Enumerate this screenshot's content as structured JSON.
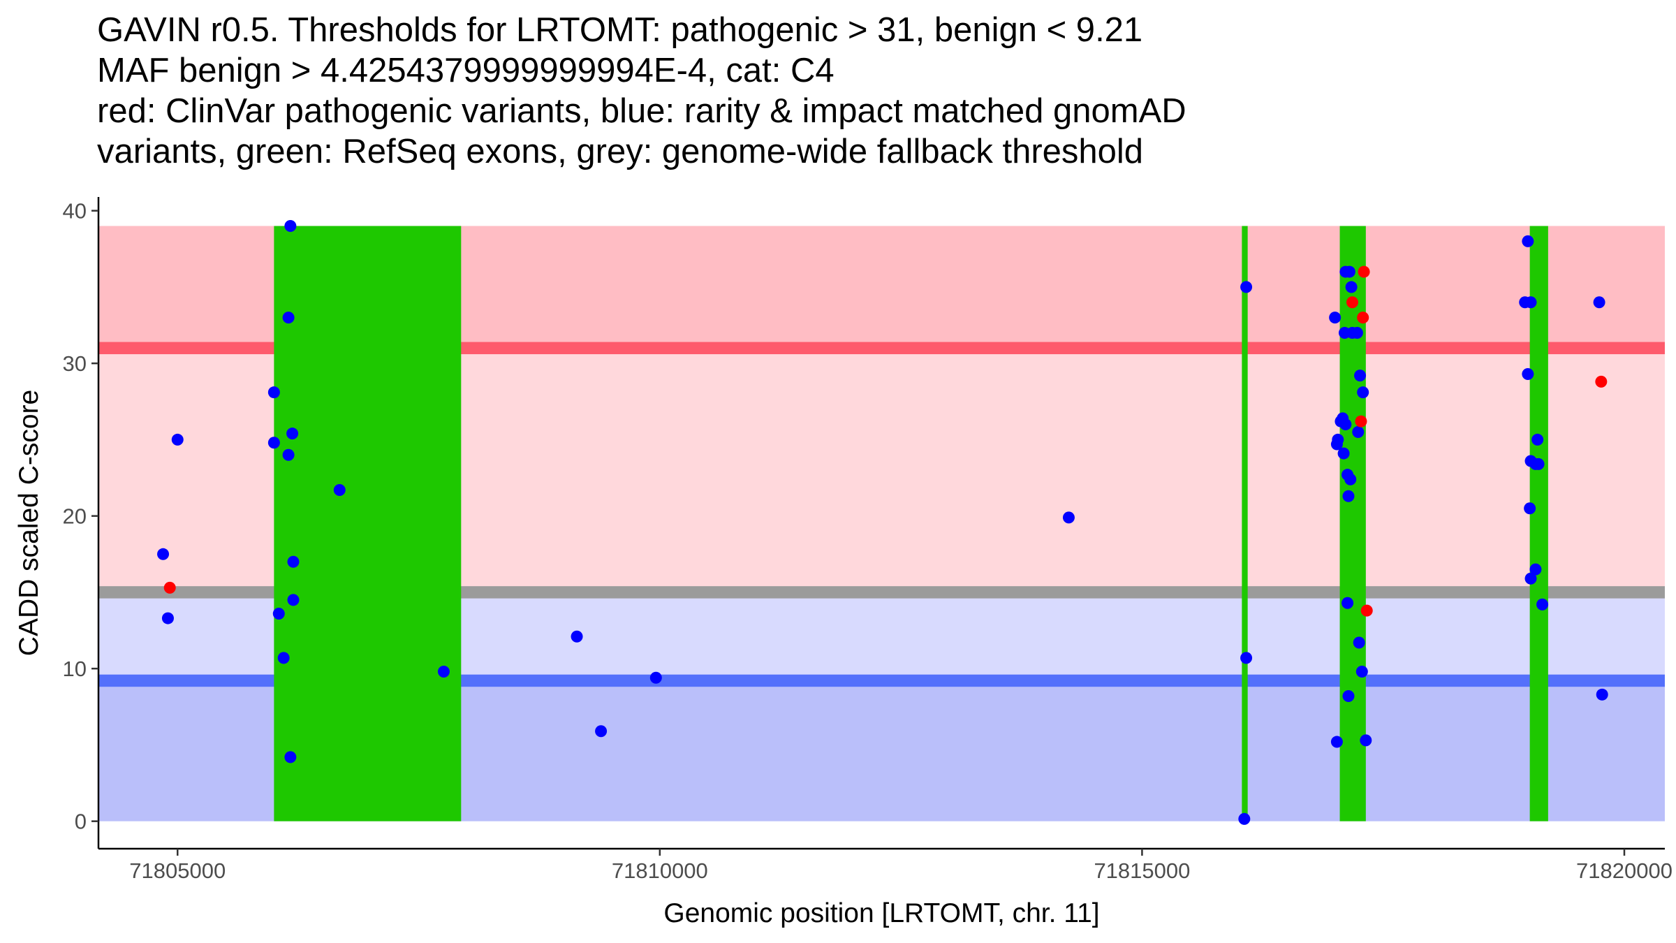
{
  "chart_data": {
    "type": "scatter",
    "title_lines": [
      "GAVIN r0.5. Thresholds for LRTOMT: pathogenic > 31, benign < 9.21",
      "MAF benign > 4.4254379999999994E-4, cat: C4",
      "red: ClinVar pathogenic variants, blue: rarity & impact matched gnomAD",
      "variants, green: RefSeq exons, grey: genome-wide fallback threshold"
    ],
    "xlabel": "Genomic position [LRTOMT, chr. 11]",
    "ylabel": "CADD scaled C-score",
    "xlim": [
      71804180,
      71820420
    ],
    "ylim": [
      -1.8,
      40.9
    ],
    "x_ticks": [
      71805000,
      71810000,
      71815000,
      71820000
    ],
    "x_tick_labels": [
      "71805000",
      "71810000",
      "71815000",
      "71820000"
    ],
    "y_ticks": [
      0,
      10,
      20,
      30,
      40
    ],
    "y_tick_labels": [
      "0",
      "10",
      "20",
      "30",
      "40"
    ],
    "colors": {
      "pathogenic_zone": "#ffbdc4",
      "middle_high_zone": "#ffd8dc",
      "middle_low_zone": "#d8dafe",
      "benign_zone": "#babffa",
      "pathogenic_line": "#fe5b6c",
      "benign_line": "#5470fb",
      "fallback_line": "#9b9b9b",
      "exon": "#1ec800",
      "gnomad_point": "#0000ff",
      "clinvar_point": "#ff0000"
    },
    "bands": {
      "x_range": [
        71804180,
        71820420
      ],
      "y_top": 39,
      "pathogenic_threshold": 31,
      "benign_threshold": 9.21,
      "fallback_threshold": 15,
      "line_halfwidth": 0.4
    },
    "exons": [
      {
        "start": 71806000,
        "end": 71807940
      },
      {
        "start": 71816035,
        "end": 71816095
      },
      {
        "start": 71817050,
        "end": 71817320
      },
      {
        "start": 71819020,
        "end": 71819210
      }
    ],
    "exon_y_range": [
      0,
      39
    ],
    "series": [
      {
        "name": "gnomAD",
        "color_key": "gnomad_point",
        "points": [
          [
            71804850,
            17.5
          ],
          [
            71804900,
            13.3
          ],
          [
            71805000,
            25
          ],
          [
            71806000,
            28.1
          ],
          [
            71806000,
            24.8
          ],
          [
            71806050,
            13.6
          ],
          [
            71806100,
            10.7
          ],
          [
            71806170,
            39
          ],
          [
            71806150,
            33
          ],
          [
            71806190,
            25.4
          ],
          [
            71806150,
            24
          ],
          [
            71806200,
            17
          ],
          [
            71806200,
            14.5
          ],
          [
            71806170,
            4.2
          ],
          [
            71806680,
            21.7
          ],
          [
            71807760,
            9.8
          ],
          [
            71809140,
            12.1
          ],
          [
            71809390,
            5.9
          ],
          [
            71809960,
            9.4
          ],
          [
            71814240,
            19.9
          ],
          [
            71816080,
            35
          ],
          [
            71816080,
            10.7
          ],
          [
            71816060,
            0.15
          ],
          [
            71817000,
            33
          ],
          [
            71817020,
            24.7
          ],
          [
            71817030,
            25
          ],
          [
            71817060,
            26.2
          ],
          [
            71817080,
            26.4
          ],
          [
            71817110,
            26
          ],
          [
            71817090,
            24.1
          ],
          [
            71817130,
            22.7
          ],
          [
            71817160,
            22.4
          ],
          [
            71817140,
            21.3
          ],
          [
            71817110,
            36
          ],
          [
            71817150,
            36
          ],
          [
            71817170,
            35
          ],
          [
            71817100,
            32
          ],
          [
            71817180,
            32
          ],
          [
            71817230,
            32
          ],
          [
            71817260,
            29.2
          ],
          [
            71817290,
            28.1
          ],
          [
            71817240,
            25.5
          ],
          [
            71817130,
            14.3
          ],
          [
            71817250,
            11.7
          ],
          [
            71817280,
            9.8
          ],
          [
            71817140,
            8.2
          ],
          [
            71817020,
            5.2
          ],
          [
            71817320,
            5.3
          ],
          [
            71819000,
            38
          ],
          [
            71818970,
            34
          ],
          [
            71819030,
            34
          ],
          [
            71819000,
            29.3
          ],
          [
            71819030,
            23.6
          ],
          [
            71819080,
            23.4
          ],
          [
            71819100,
            25
          ],
          [
            71819110,
            23.4
          ],
          [
            71819020,
            20.5
          ],
          [
            71819080,
            16.5
          ],
          [
            71819030,
            15.9
          ],
          [
            71819150,
            14.2
          ],
          [
            71819740,
            34
          ],
          [
            71819770,
            8.3
          ]
        ]
      },
      {
        "name": "ClinVar",
        "color_key": "clinvar_point",
        "points": [
          [
            71804920,
            15.3
          ],
          [
            71817300,
            36
          ],
          [
            71817180,
            34
          ],
          [
            71817290,
            33
          ],
          [
            71817270,
            26.2
          ],
          [
            71817330,
            13.8
          ],
          [
            71819760,
            28.8
          ]
        ]
      }
    ]
  }
}
